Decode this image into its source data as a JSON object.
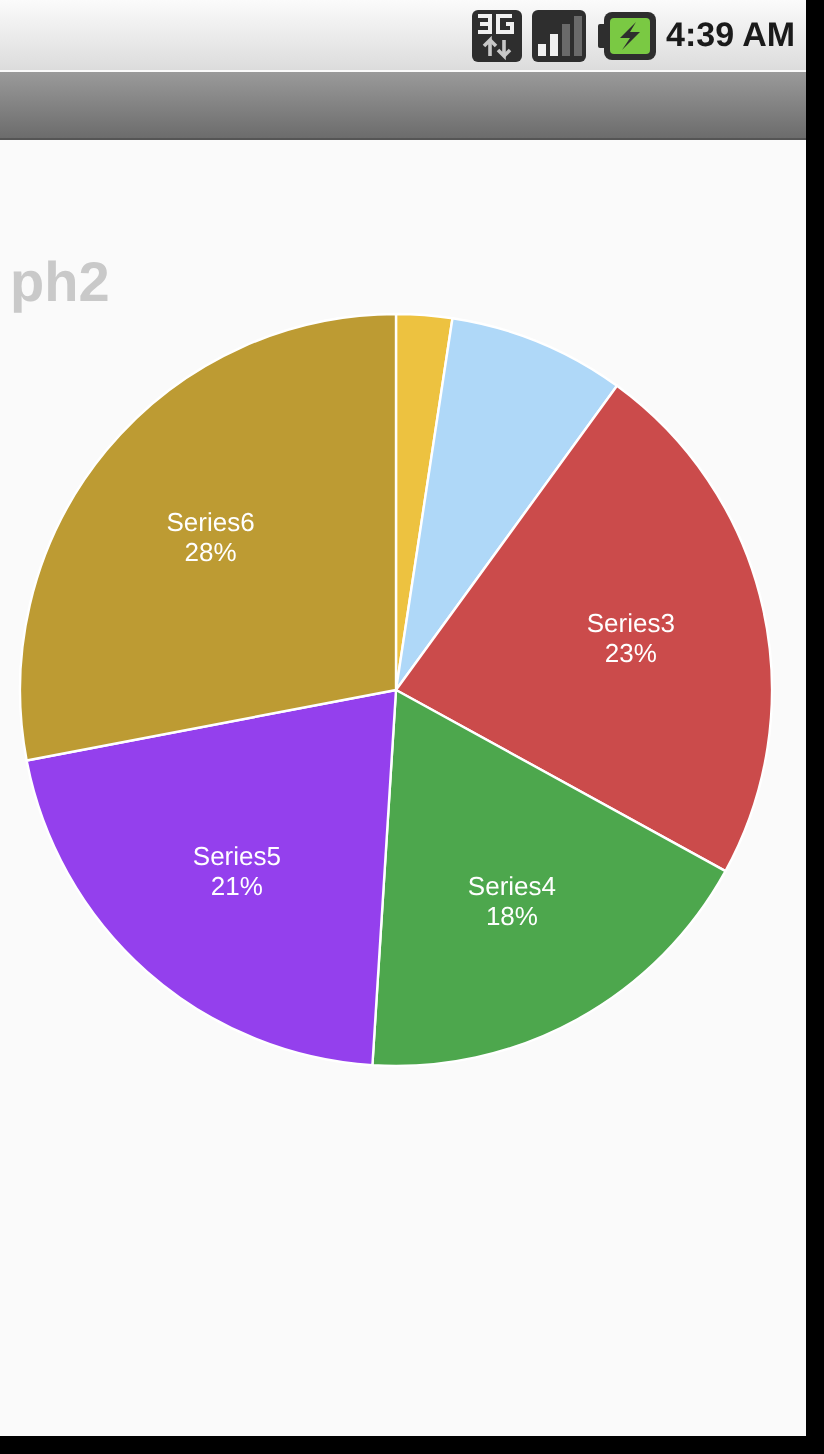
{
  "chart_data": {
    "type": "pie",
    "title": "ph2",
    "categories": [
      null,
      null,
      "Series3",
      "Series4",
      "Series5",
      "Series6"
    ],
    "values": [
      2.4,
      7.6,
      23,
      18,
      21,
      28
    ],
    "colors": [
      "#edc240",
      "#afd8f8",
      "#cb4b4b",
      "#4da74d",
      "#9440ed",
      "#bd9b33"
    ],
    "value_labels": [
      null,
      null,
      "23%",
      "18%",
      "21%",
      "28%"
    ],
    "annotations": [
      "4:39 AM"
    ]
  }
}
